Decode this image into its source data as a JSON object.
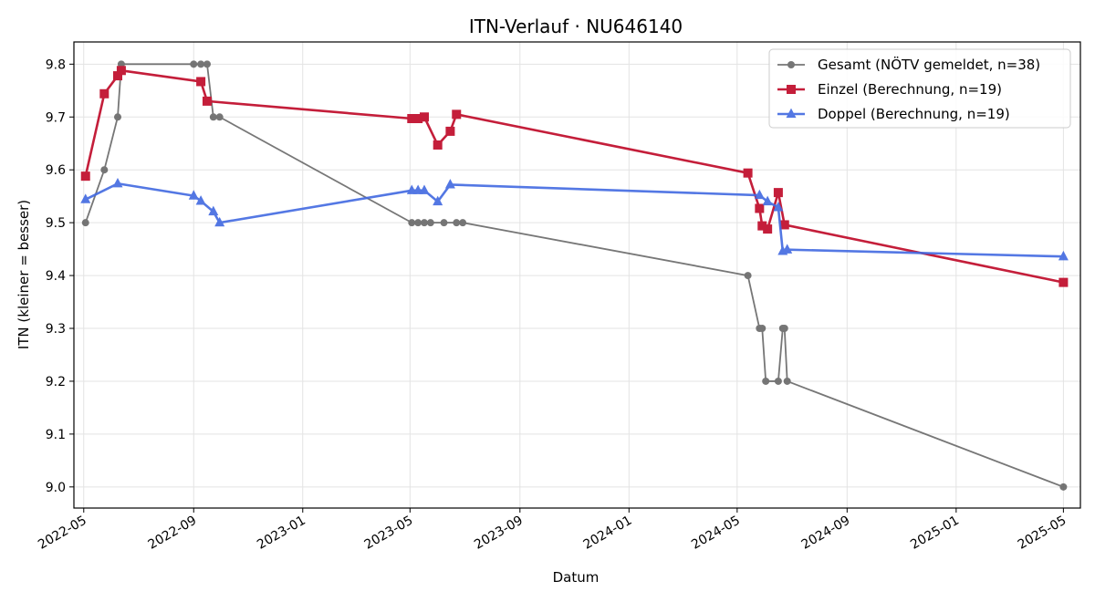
{
  "chart_data": {
    "type": "line",
    "title": "ITN-Verlauf · NU646140",
    "xlabel": "Datum",
    "ylabel": "ITN  (kleiner = besser)",
    "x_axis_kind": "date",
    "xlim": [
      "2022-04-20",
      "2025-05-20"
    ],
    "ylim": [
      8.96,
      9.842
    ],
    "x_ticks": [
      "2022-05-01",
      "2022-09-01",
      "2023-01-01",
      "2023-05-01",
      "2023-09-01",
      "2024-01-01",
      "2024-05-01",
      "2024-09-01",
      "2025-01-01",
      "2025-05-01"
    ],
    "x_tick_labels": [
      "2022-05",
      "2022-09",
      "2023-01",
      "2023-05",
      "2023-09",
      "2024-01",
      "2024-05",
      "2024-09",
      "2025-01",
      "2025-05"
    ],
    "y_ticks": [
      9.0,
      9.1,
      9.2,
      9.3,
      9.4,
      9.5,
      9.6,
      9.7,
      9.8
    ],
    "y_tick_labels": [
      "9.0",
      "9.1",
      "9.2",
      "9.3",
      "9.4",
      "9.5",
      "9.6",
      "9.7",
      "9.8"
    ],
    "grid": true,
    "legend_position": "top-right",
    "series": [
      {
        "name": "Gesamt (NÖTV gemeldet, n=38)",
        "color": "#555555",
        "marker": "circle",
        "points": [
          [
            "2022-05-03",
            9.5
          ],
          [
            "2022-05-24",
            9.6
          ],
          [
            "2022-06-08",
            9.7
          ],
          [
            "2022-06-12",
            9.8
          ],
          [
            "2022-09-01",
            9.8
          ],
          [
            "2022-09-09",
            9.8
          ],
          [
            "2022-09-16",
            9.8
          ],
          [
            "2022-09-23",
            9.7
          ],
          [
            "2022-09-30",
            9.7
          ],
          [
            "2023-05-03",
            9.5
          ],
          [
            "2023-05-10",
            9.5
          ],
          [
            "2023-05-17",
            9.5
          ],
          [
            "2023-05-24",
            9.5
          ],
          [
            "2023-06-08",
            9.5
          ],
          [
            "2023-06-22",
            9.5
          ],
          [
            "2023-06-29",
            9.5
          ],
          [
            "2024-05-13",
            9.4
          ],
          [
            "2024-05-26",
            9.3
          ],
          [
            "2024-05-29",
            9.3
          ],
          [
            "2024-06-02",
            9.2
          ],
          [
            "2024-06-16",
            9.2
          ],
          [
            "2024-06-21",
            9.3
          ],
          [
            "2024-06-23",
            9.3
          ],
          [
            "2024-06-26",
            9.2
          ],
          [
            "2025-05-01",
            9.0
          ]
        ]
      },
      {
        "name": "Einzel (Berechnung, n=19)",
        "color": "#c41e3a",
        "marker": "square",
        "points": [
          [
            "2022-05-03",
            9.588
          ],
          [
            "2022-05-24",
            9.744
          ],
          [
            "2022-06-08",
            9.778
          ],
          [
            "2022-06-12",
            9.788
          ],
          [
            "2022-09-09",
            9.767
          ],
          [
            "2022-09-16",
            9.73
          ],
          [
            "2023-05-03",
            9.697
          ],
          [
            "2023-05-10",
            9.697
          ],
          [
            "2023-05-17",
            9.7
          ],
          [
            "2023-06-01",
            9.647
          ],
          [
            "2023-06-15",
            9.673
          ],
          [
            "2023-06-22",
            9.705
          ],
          [
            "2024-05-13",
            9.594
          ],
          [
            "2024-05-26",
            9.527
          ],
          [
            "2024-05-29",
            9.494
          ],
          [
            "2024-06-04",
            9.488
          ],
          [
            "2024-06-16",
            9.557
          ],
          [
            "2024-06-23",
            9.496
          ],
          [
            "2025-05-01",
            9.387
          ]
        ]
      },
      {
        "name": "Doppel (Berechnung, n=19)",
        "color": "#4169e1",
        "marker": "triangle",
        "points": [
          [
            "2022-05-03",
            9.544
          ],
          [
            "2022-06-08",
            9.574
          ],
          [
            "2022-09-01",
            9.551
          ],
          [
            "2022-09-09",
            9.541
          ],
          [
            "2022-09-23",
            9.521
          ],
          [
            "2022-09-30",
            9.5
          ],
          [
            "2023-05-03",
            9.561
          ],
          [
            "2023-05-10",
            9.561
          ],
          [
            "2023-05-17",
            9.561
          ],
          [
            "2023-06-01",
            9.54
          ],
          [
            "2023-06-15",
            9.572
          ],
          [
            "2024-05-26",
            9.552
          ],
          [
            "2024-06-04",
            9.54
          ],
          [
            "2024-06-16",
            9.529
          ],
          [
            "2024-06-21",
            9.446
          ],
          [
            "2024-06-26",
            9.449
          ],
          [
            "2025-05-01",
            9.436
          ]
        ]
      }
    ]
  }
}
